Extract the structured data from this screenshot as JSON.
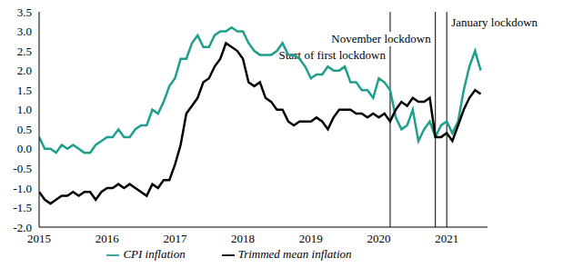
{
  "chart_data": {
    "type": "line",
    "x": [
      2015,
      2015.083,
      2015.167,
      2015.25,
      2015.333,
      2015.417,
      2015.5,
      2015.583,
      2015.667,
      2015.75,
      2015.833,
      2015.917,
      2016,
      2016.083,
      2016.167,
      2016.25,
      2016.333,
      2016.417,
      2016.5,
      2016.583,
      2016.667,
      2016.75,
      2016.833,
      2016.917,
      2017,
      2017.083,
      2017.167,
      2017.25,
      2017.333,
      2017.417,
      2017.5,
      2017.583,
      2017.667,
      2017.75,
      2017.833,
      2017.917,
      2018,
      2018.083,
      2018.167,
      2018.25,
      2018.333,
      2018.417,
      2018.5,
      2018.583,
      2018.667,
      2018.75,
      2018.833,
      2018.917,
      2019,
      2019.083,
      2019.167,
      2019.25,
      2019.333,
      2019.417,
      2019.5,
      2019.583,
      2019.667,
      2019.75,
      2019.833,
      2019.917,
      2020,
      2020.083,
      2020.167,
      2020.25,
      2020.333,
      2020.417,
      2020.5,
      2020.583,
      2020.667,
      2020.75,
      2020.833,
      2020.917,
      2021,
      2021.083,
      2021.167,
      2021.25,
      2021.333,
      2021.417,
      2021.5
    ],
    "series": [
      {
        "name": "CPI inflation",
        "color": "#1f9e8e",
        "values": [
          0.3,
          0.0,
          0.0,
          -0.1,
          0.1,
          0.0,
          0.1,
          0.0,
          -0.1,
          -0.1,
          0.1,
          0.2,
          0.3,
          0.3,
          0.5,
          0.3,
          0.3,
          0.5,
          0.6,
          0.6,
          1.0,
          0.9,
          1.2,
          1.6,
          1.8,
          2.3,
          2.3,
          2.7,
          2.9,
          2.6,
          2.6,
          2.9,
          3.0,
          3.0,
          3.1,
          3.0,
          3.0,
          2.7,
          2.5,
          2.4,
          2.4,
          2.4,
          2.5,
          2.7,
          2.4,
          2.4,
          2.3,
          2.1,
          1.8,
          1.9,
          1.9,
          2.1,
          2.0,
          2.0,
          2.1,
          1.7,
          1.7,
          1.5,
          1.5,
          1.3,
          1.8,
          1.7,
          1.5,
          0.8,
          0.5,
          0.6,
          1.0,
          0.2,
          0.5,
          0.7,
          0.3,
          0.6,
          0.7,
          0.4,
          0.7,
          1.5,
          2.1,
          2.5,
          2.0
        ]
      },
      {
        "name": "Trimmed mean inflation",
        "color": "#000000",
        "values": [
          -1.1,
          -1.3,
          -1.4,
          -1.3,
          -1.2,
          -1.2,
          -1.1,
          -1.2,
          -1.1,
          -1.1,
          -1.3,
          -1.1,
          -1.0,
          -1.0,
          -0.9,
          -1.0,
          -0.9,
          -1.0,
          -1.1,
          -1.2,
          -0.9,
          -1.0,
          -0.8,
          -0.8,
          -0.4,
          0.1,
          0.9,
          1.1,
          1.3,
          1.7,
          1.8,
          2.1,
          2.3,
          2.7,
          2.6,
          2.5,
          2.3,
          1.7,
          1.6,
          1.7,
          1.3,
          1.2,
          1.0,
          1.0,
          0.7,
          0.6,
          0.7,
          0.7,
          0.7,
          0.8,
          0.7,
          0.5,
          0.8,
          1.0,
          1.0,
          1.0,
          0.9,
          0.9,
          0.8,
          0.9,
          0.8,
          0.9,
          0.7,
          1.0,
          1.2,
          1.1,
          1.3,
          1.2,
          1.2,
          1.3,
          0.3,
          0.3,
          0.4,
          0.2,
          0.6,
          1.0,
          1.3,
          1.5,
          1.4
        ]
      }
    ],
    "xlim": [
      2015,
      2021.6
    ],
    "xticks": [
      2015,
      2016,
      2017,
      2018,
      2019,
      2020,
      2021
    ],
    "ylim": [
      -2,
      3.5
    ],
    "yticks": [
      {
        "value": -2,
        "label": "-2.0"
      },
      -1.5,
      {
        "value": -1,
        "label": "-1.0"
      },
      -0.5,
      {
        "value": 0,
        "label": "0.0"
      },
      0.5,
      {
        "value": 1,
        "label": "1.0"
      },
      1.5,
      {
        "value": 2,
        "label": "2.0"
      },
      2.5,
      {
        "value": 3,
        "label": "3.0"
      },
      3.5
    ],
    "grid": false,
    "legend": "bottom",
    "annotations": [
      {
        "text": "Start of first lockdown",
        "x": 2020.167
      },
      {
        "text": "November lockdown",
        "x": 2020.833
      },
      {
        "text": "January lockdown",
        "x": 2021
      }
    ]
  }
}
